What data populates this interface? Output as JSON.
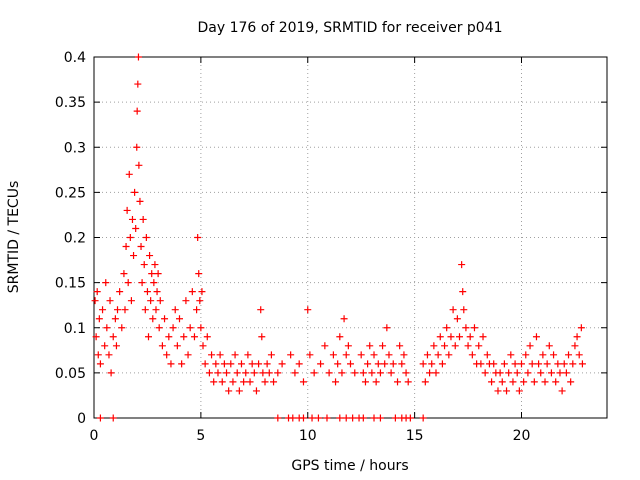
{
  "chart_data": {
    "type": "scatter",
    "title": "Day 176 of 2019, SRMTID for receiver p041",
    "xlabel": "GPS time / hours",
    "ylabel": "SRMTID / TECUs",
    "xlim": [
      0,
      24
    ],
    "ylim": [
      0,
      0.4
    ],
    "xticks": [
      0,
      5,
      10,
      15,
      20
    ],
    "xtick_labels": [
      "0",
      "5",
      "10",
      "15",
      "20"
    ],
    "yticks": [
      0,
      0.05,
      0.1,
      0.15,
      0.2,
      0.25,
      0.3,
      0.35,
      0.4
    ],
    "ytick_labels": [
      "0",
      "0.05",
      "0.1",
      "0.15",
      "0.2",
      "0.25",
      "0.3",
      "0.35",
      "0.4"
    ],
    "grid": true,
    "marker_color": "#ff0000",
    "series": [
      {
        "name": "SRMTID",
        "marker": "plus",
        "points": [
          [
            0.05,
            0.13
          ],
          [
            0.1,
            0.09
          ],
          [
            0.15,
            0.14
          ],
          [
            0.2,
            0.07
          ],
          [
            0.25,
            0.11
          ],
          [
            0.3,
            0.06
          ],
          [
            0.4,
            0.12
          ],
          [
            0.5,
            0.08
          ],
          [
            0.55,
            0.15
          ],
          [
            0.6,
            0.1
          ],
          [
            0.7,
            0.07
          ],
          [
            0.75,
            0.13
          ],
          [
            0.8,
            0.05
          ],
          [
            0.9,
            0.09
          ],
          [
            1.0,
            0.11
          ],
          [
            1.05,
            0.08
          ],
          [
            1.1,
            0.12
          ],
          [
            1.2,
            0.14
          ],
          [
            1.3,
            0.1
          ],
          [
            1.4,
            0.16
          ],
          [
            1.45,
            0.12
          ],
          [
            1.5,
            0.19
          ],
          [
            1.55,
            0.23
          ],
          [
            1.6,
            0.15
          ],
          [
            1.65,
            0.27
          ],
          [
            1.7,
            0.2
          ],
          [
            1.75,
            0.13
          ],
          [
            1.8,
            0.22
          ],
          [
            1.85,
            0.18
          ],
          [
            1.9,
            0.25
          ],
          [
            1.95,
            0.21
          ],
          [
            2.0,
            0.3
          ],
          [
            2.02,
            0.34
          ],
          [
            2.05,
            0.37
          ],
          [
            2.08,
            0.4
          ],
          [
            2.1,
            0.28
          ],
          [
            2.15,
            0.24
          ],
          [
            2.2,
            0.19
          ],
          [
            2.25,
            0.15
          ],
          [
            2.3,
            0.22
          ],
          [
            2.35,
            0.17
          ],
          [
            2.4,
            0.12
          ],
          [
            2.45,
            0.2
          ],
          [
            2.5,
            0.14
          ],
          [
            2.55,
            0.09
          ],
          [
            2.6,
            0.18
          ],
          [
            2.65,
            0.13
          ],
          [
            2.7,
            0.16
          ],
          [
            2.75,
            0.11
          ],
          [
            2.8,
            0.15
          ],
          [
            2.85,
            0.17
          ],
          [
            2.9,
            0.12
          ],
          [
            2.95,
            0.14
          ],
          [
            3.0,
            0.16
          ],
          [
            3.05,
            0.1
          ],
          [
            3.1,
            0.13
          ],
          [
            3.2,
            0.08
          ],
          [
            3.3,
            0.11
          ],
          [
            3.4,
            0.07
          ],
          [
            3.5,
            0.09
          ],
          [
            3.6,
            0.06
          ],
          [
            3.7,
            0.1
          ],
          [
            3.8,
            0.12
          ],
          [
            3.9,
            0.08
          ],
          [
            4.0,
            0.11
          ],
          [
            4.1,
            0.06
          ],
          [
            4.2,
            0.09
          ],
          [
            4.3,
            0.13
          ],
          [
            4.4,
            0.07
          ],
          [
            4.5,
            0.1
          ],
          [
            4.6,
            0.14
          ],
          [
            4.7,
            0.09
          ],
          [
            4.8,
            0.12
          ],
          [
            4.85,
            0.2
          ],
          [
            4.9,
            0.16
          ],
          [
            4.95,
            0.13
          ],
          [
            5.0,
            0.1
          ],
          [
            5.05,
            0.14
          ],
          [
            5.1,
            0.08
          ],
          [
            5.2,
            0.06
          ],
          [
            5.3,
            0.09
          ],
          [
            5.4,
            0.05
          ],
          [
            5.5,
            0.07
          ],
          [
            5.6,
            0.04
          ],
          [
            5.7,
            0.06
          ],
          [
            5.8,
            0.05
          ],
          [
            5.9,
            0.07
          ],
          [
            6.0,
            0.04
          ],
          [
            6.1,
            0.06
          ],
          [
            6.2,
            0.05
          ],
          [
            6.3,
            0.03
          ],
          [
            6.4,
            0.06
          ],
          [
            6.5,
            0.04
          ],
          [
            6.6,
            0.07
          ],
          [
            6.7,
            0.05
          ],
          [
            6.8,
            0.03
          ],
          [
            6.9,
            0.06
          ],
          [
            7.0,
            0.04
          ],
          [
            7.1,
            0.05
          ],
          [
            7.2,
            0.07
          ],
          [
            7.3,
            0.04
          ],
          [
            7.4,
            0.06
          ],
          [
            7.5,
            0.05
          ],
          [
            7.6,
            0.03
          ],
          [
            7.7,
            0.06
          ],
          [
            7.8,
            0.12
          ],
          [
            7.85,
            0.09
          ],
          [
            7.9,
            0.05
          ],
          [
            8.0,
            0.04
          ],
          [
            8.1,
            0.06
          ],
          [
            8.2,
            0.05
          ],
          [
            8.3,
            0.07
          ],
          [
            8.4,
            0.04
          ],
          [
            8.6,
            0.05
          ],
          [
            8.8,
            0.06
          ],
          [
            9.2,
            0.07
          ],
          [
            9.4,
            0.05
          ],
          [
            9.6,
            0.06
          ],
          [
            9.8,
            0.04
          ],
          [
            10.0,
            0.12
          ],
          [
            10.1,
            0.07
          ],
          [
            10.3,
            0.05
          ],
          [
            10.6,
            0.06
          ],
          [
            10.8,
            0.08
          ],
          [
            11.0,
            0.05
          ],
          [
            11.2,
            0.07
          ],
          [
            11.3,
            0.04
          ],
          [
            11.4,
            0.06
          ],
          [
            11.5,
            0.09
          ],
          [
            11.6,
            0.05
          ],
          [
            11.7,
            0.11
          ],
          [
            11.8,
            0.07
          ],
          [
            11.9,
            0.08
          ],
          [
            12.0,
            0.06
          ],
          [
            12.2,
            0.05
          ],
          [
            12.5,
            0.07
          ],
          [
            12.6,
            0.05
          ],
          [
            12.7,
            0.04
          ],
          [
            12.8,
            0.06
          ],
          [
            12.9,
            0.08
          ],
          [
            13.0,
            0.05
          ],
          [
            13.1,
            0.07
          ],
          [
            13.2,
            0.04
          ],
          [
            13.3,
            0.06
          ],
          [
            13.4,
            0.05
          ],
          [
            13.5,
            0.08
          ],
          [
            13.6,
            0.06
          ],
          [
            13.7,
            0.1
          ],
          [
            13.8,
            0.07
          ],
          [
            13.9,
            0.05
          ],
          [
            14.0,
            0.06
          ],
          [
            14.2,
            0.04
          ],
          [
            14.3,
            0.08
          ],
          [
            14.4,
            0.06
          ],
          [
            14.5,
            0.07
          ],
          [
            14.6,
            0.05
          ],
          [
            14.7,
            0.04
          ],
          [
            15.4,
            0.06
          ],
          [
            15.5,
            0.04
          ],
          [
            15.6,
            0.07
          ],
          [
            15.7,
            0.05
          ],
          [
            15.8,
            0.06
          ],
          [
            15.9,
            0.08
          ],
          [
            16.0,
            0.05
          ],
          [
            16.1,
            0.07
          ],
          [
            16.2,
            0.09
          ],
          [
            16.3,
            0.06
          ],
          [
            16.4,
            0.08
          ],
          [
            16.5,
            0.1
          ],
          [
            16.6,
            0.07
          ],
          [
            16.7,
            0.09
          ],
          [
            16.8,
            0.12
          ],
          [
            16.9,
            0.08
          ],
          [
            17.0,
            0.11
          ],
          [
            17.1,
            0.09
          ],
          [
            17.2,
            0.17
          ],
          [
            17.25,
            0.14
          ],
          [
            17.3,
            0.12
          ],
          [
            17.4,
            0.1
          ],
          [
            17.5,
            0.08
          ],
          [
            17.6,
            0.09
          ],
          [
            17.7,
            0.07
          ],
          [
            17.8,
            0.1
          ],
          [
            17.9,
            0.06
          ],
          [
            18.0,
            0.08
          ],
          [
            18.1,
            0.06
          ],
          [
            18.2,
            0.09
          ],
          [
            18.3,
            0.05
          ],
          [
            18.4,
            0.07
          ],
          [
            18.5,
            0.06
          ],
          [
            18.6,
            0.04
          ],
          [
            18.7,
            0.06
          ],
          [
            18.8,
            0.05
          ],
          [
            18.9,
            0.03
          ],
          [
            19.0,
            0.05
          ],
          [
            19.1,
            0.04
          ],
          [
            19.2,
            0.06
          ],
          [
            19.3,
            0.03
          ],
          [
            19.4,
            0.05
          ],
          [
            19.5,
            0.07
          ],
          [
            19.6,
            0.04
          ],
          [
            19.7,
            0.06
          ],
          [
            19.8,
            0.05
          ],
          [
            19.9,
            0.03
          ],
          [
            20.0,
            0.06
          ],
          [
            20.1,
            0.04
          ],
          [
            20.2,
            0.07
          ],
          [
            20.3,
            0.05
          ],
          [
            20.4,
            0.08
          ],
          [
            20.5,
            0.06
          ],
          [
            20.6,
            0.04
          ],
          [
            20.7,
            0.09
          ],
          [
            20.8,
            0.06
          ],
          [
            20.9,
            0.05
          ],
          [
            21.0,
            0.07
          ],
          [
            21.1,
            0.04
          ],
          [
            21.2,
            0.06
          ],
          [
            21.3,
            0.08
          ],
          [
            21.4,
            0.05
          ],
          [
            21.5,
            0.07
          ],
          [
            21.6,
            0.04
          ],
          [
            21.7,
            0.06
          ],
          [
            21.8,
            0.05
          ],
          [
            21.9,
            0.03
          ],
          [
            22.0,
            0.06
          ],
          [
            22.1,
            0.05
          ],
          [
            22.2,
            0.07
          ],
          [
            22.3,
            0.04
          ],
          [
            22.4,
            0.06
          ],
          [
            22.5,
            0.08
          ],
          [
            22.6,
            0.09
          ],
          [
            22.7,
            0.07
          ],
          [
            22.8,
            0.1
          ],
          [
            22.85,
            0.06
          ],
          [
            0.3,
            0.0
          ],
          [
            0.9,
            0.0
          ],
          [
            8.6,
            0.0
          ],
          [
            9.1,
            0.0
          ],
          [
            9.3,
            0.0
          ],
          [
            9.6,
            0.0
          ],
          [
            9.8,
            0.0
          ],
          [
            10.2,
            0.0
          ],
          [
            10.5,
            0.0
          ],
          [
            10.9,
            0.0
          ],
          [
            11.5,
            0.0
          ],
          [
            11.8,
            0.0
          ],
          [
            12.1,
            0.0
          ],
          [
            12.4,
            0.0
          ],
          [
            12.6,
            0.0
          ],
          [
            13.1,
            0.0
          ],
          [
            13.4,
            0.0
          ],
          [
            14.1,
            0.0
          ],
          [
            14.4,
            0.0
          ],
          [
            14.6,
            0.0
          ],
          [
            14.8,
            0.0
          ],
          [
            15.4,
            0.0
          ]
        ]
      }
    ]
  }
}
